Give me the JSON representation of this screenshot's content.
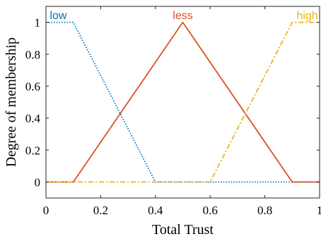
{
  "chart_data": {
    "type": "line",
    "title": "",
    "xlabel": "Total Trust",
    "ylabel": "Degree of membership",
    "xlim": [
      0,
      1
    ],
    "ylim": [
      -0.1,
      1.1
    ],
    "x_ticks": [
      0,
      0.2,
      0.4,
      0.6,
      0.8,
      1
    ],
    "x_tick_labels": [
      "0",
      "0.2",
      "0.4",
      "0.6",
      "0.8",
      "1"
    ],
    "y_ticks": [
      0,
      0.2,
      0.4,
      0.6,
      0.8,
      1
    ],
    "y_tick_labels": [
      "0",
      "0.2",
      "0.4",
      "0.6",
      "0.8",
      "1"
    ],
    "grid": false,
    "series": [
      {
        "name": "low",
        "color": "#0072BD",
        "dash": "dotted",
        "x": [
          0,
          0.1,
          0.4,
          1
        ],
        "y": [
          1,
          1,
          0,
          0
        ],
        "label_at": [
          0.045,
          1.03
        ],
        "label_anchor": "middle"
      },
      {
        "name": "less",
        "color": "#D95319",
        "dash": "solid",
        "x": [
          0,
          0.1,
          0.5,
          0.9,
          1
        ],
        "y": [
          0,
          0,
          1,
          0,
          0
        ],
        "label_at": [
          0.5,
          1.03
        ],
        "label_anchor": "middle"
      },
      {
        "name": "high",
        "color": "#EDB120",
        "dash": "dashdot",
        "x": [
          0,
          0.6,
          0.9,
          1
        ],
        "y": [
          0,
          0,
          1,
          1
        ],
        "label_at": [
          0.955,
          1.03
        ],
        "label_anchor": "middle"
      }
    ]
  }
}
